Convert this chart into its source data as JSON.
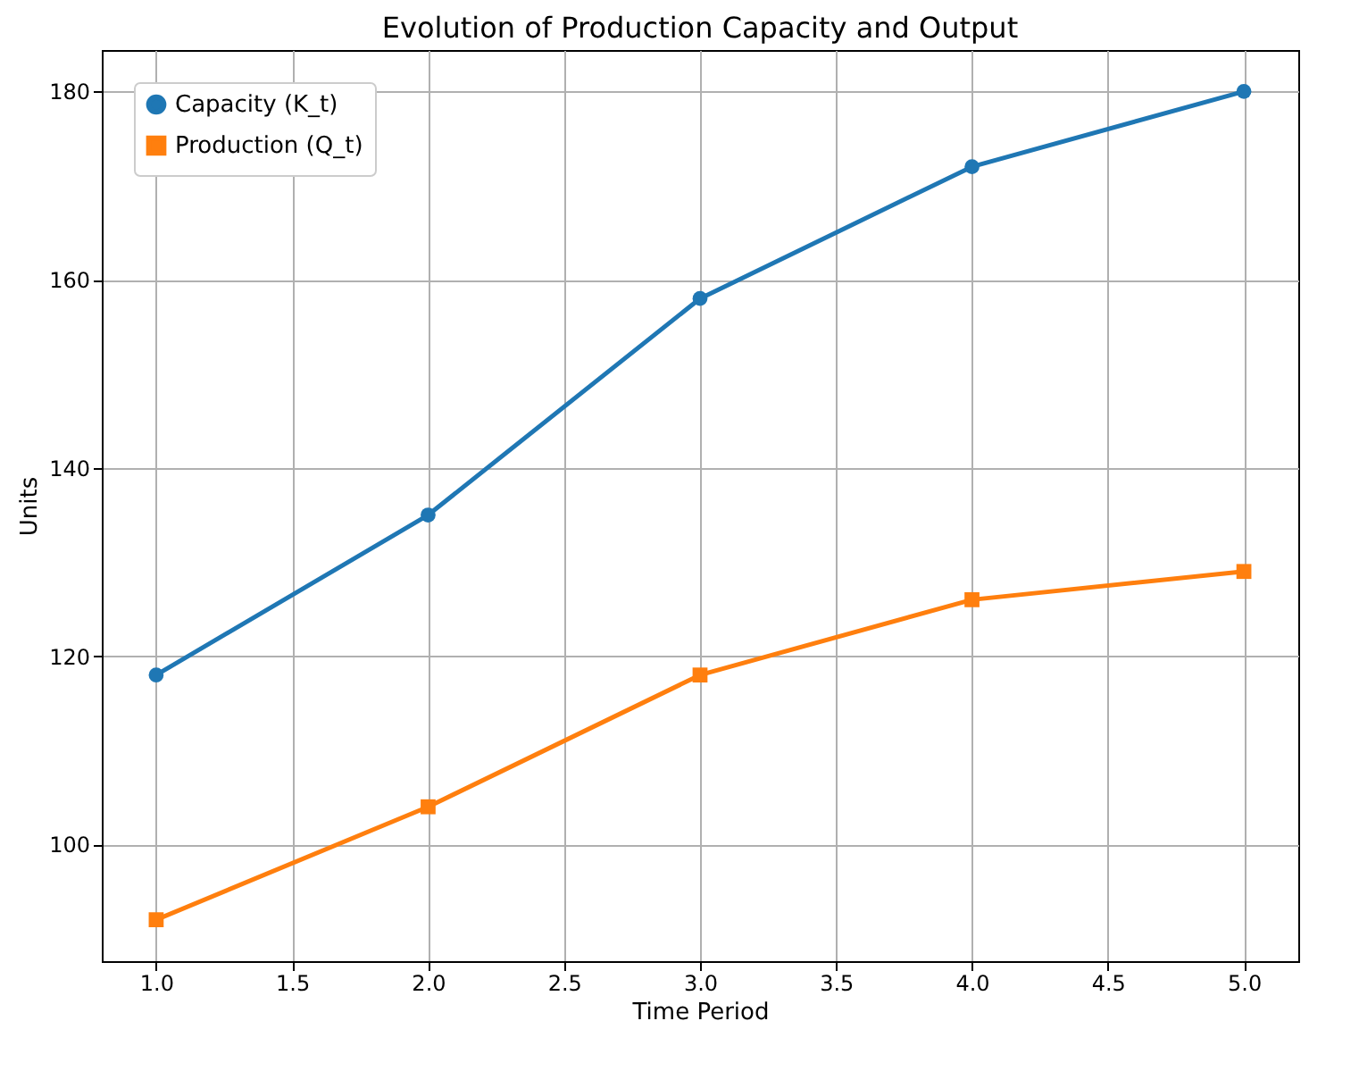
{
  "chart_data": {
    "type": "line",
    "title": "Evolution of Production Capacity and Output",
    "xlabel": "Time Period",
    "ylabel": "Units",
    "x": [
      1,
      2,
      3,
      4,
      5
    ],
    "series": [
      {
        "name": "Capacity (K_t)",
        "color": "#1f77b4",
        "marker": "circle",
        "values": [
          118,
          135,
          158,
          172,
          180
        ]
      },
      {
        "name": "Production (Q_t)",
        "color": "#ff7f0e",
        "marker": "square",
        "values": [
          92,
          104,
          118,
          126,
          129
        ]
      }
    ],
    "xlim": [
      0.8,
      5.2
    ],
    "xticks": [
      {
        "value": 1,
        "label": "1.0"
      },
      1.5,
      {
        "value": 2,
        "label": "2.0"
      },
      2.5,
      {
        "value": 3,
        "label": "3.0"
      },
      3.5,
      {
        "value": 4,
        "label": "4.0"
      },
      4.5,
      {
        "value": 5,
        "label": "5.0"
      }
    ],
    "ylim": [
      87.6,
      184.4
    ],
    "yticks": [
      100,
      120,
      140,
      160,
      180
    ],
    "grid": true,
    "legend": "top left",
    "line_style": "solid"
  }
}
